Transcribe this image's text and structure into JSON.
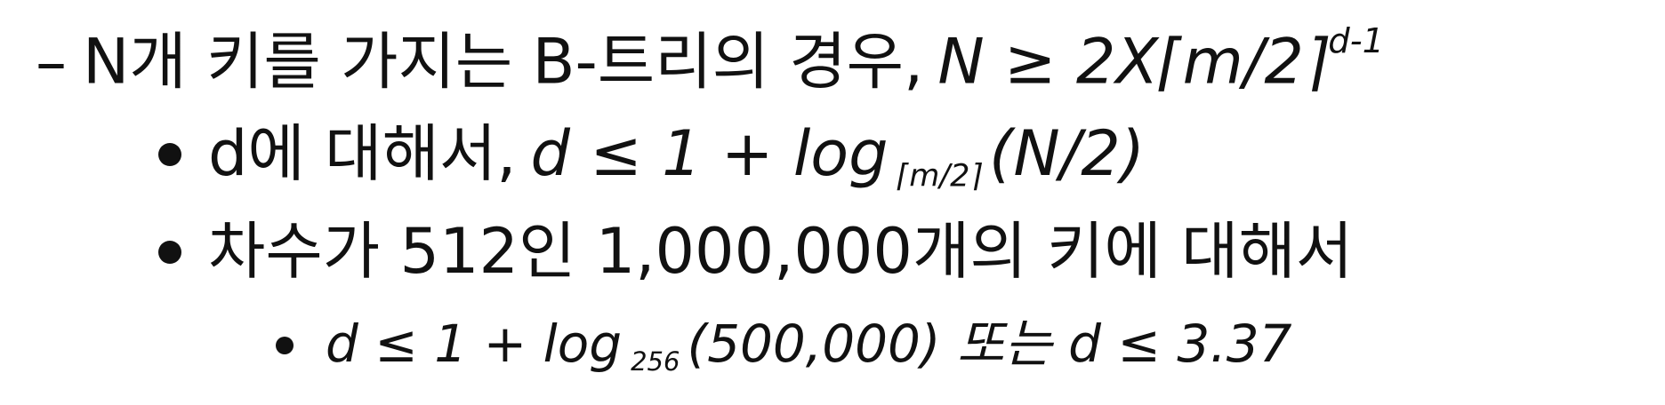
{
  "line1": {
    "dash": "–",
    "text": "N개 키를 가지는 B-트리의 경우,",
    "math": "N ≥ 2X⌈m/2⌉",
    "sup": "d-1"
  },
  "line2": {
    "text": "d에 대해서,",
    "math_a": "d ≤ 1 + log",
    "sub": "⌈m/2⌉",
    "math_b": "(N/2)"
  },
  "line3": {
    "text": "차수가 512인 1,000,000개의 키에 대해서"
  },
  "line4": {
    "math_a": "d  ≤ 1 + log",
    "sub": "256",
    "math_b": "(500,000)  또는  d  ≤ 3.37"
  }
}
